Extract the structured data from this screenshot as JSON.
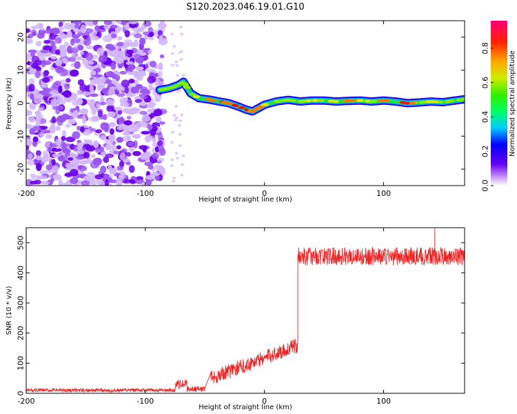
{
  "title": "S120.2023.046.19.01.G10",
  "colors": {
    "snr_line": "#ee2222",
    "ridge_strong": "#dd1111",
    "ridge_mid": "#22cc22",
    "ridge_weak": "#2200ee",
    "noise": "#7700ee"
  },
  "chart_data": [
    {
      "id": "spectrogram",
      "type": "heatmap",
      "xlabel": "Height of straight line (km)",
      "ylabel": "Frequency (Hz)",
      "xlim": [
        -200,
        168
      ],
      "ylim": [
        -25,
        25
      ],
      "x_ticks": [
        -200,
        -100,
        0,
        100
      ],
      "x_tick_labels": [
        "-200",
        "-100",
        "0",
        "100"
      ],
      "y_ticks": [
        -20,
        -10,
        0,
        10,
        20
      ],
      "y_tick_labels": [
        "-20",
        "-10",
        "0",
        "10",
        "20"
      ],
      "noise_region_x": [
        -200,
        -85
      ],
      "ridge": {
        "x": [
          -88,
          -80,
          -72,
          -68,
          -62,
          -55,
          -45,
          -38,
          -30,
          -22,
          -15,
          -10,
          -5,
          0,
          10,
          20,
          30,
          40,
          50,
          60,
          70,
          80,
          90,
          100,
          110,
          120,
          130,
          140,
          150,
          160,
          168
        ],
        "y": [
          4,
          4.5,
          5.5,
          6.5,
          3,
          1.5,
          1,
          0.5,
          0,
          -1,
          -2,
          -2.5,
          -1.5,
          -0.5,
          0.5,
          1,
          0.5,
          0.8,
          0.8,
          0.5,
          0.7,
          0.8,
          0.5,
          0.8,
          0.5,
          0,
          0.2,
          0.5,
          0.3,
          0.8,
          1.2
        ],
        "amplitude": [
          0.3,
          0.5,
          0.6,
          0.6,
          0.6,
          0.7,
          0.8,
          0.9,
          0.8,
          0.9,
          0.9,
          0.8,
          0.8,
          0.7,
          0.6,
          0.65,
          0.6,
          0.7,
          0.6,
          0.7,
          0.8,
          0.75,
          0.6,
          0.8,
          0.9,
          0.95,
          0.6,
          0.7,
          0.6,
          0.5,
          0.5
        ]
      },
      "colorbar": {
        "label": "Normalized spectral amplitude",
        "range": [
          0,
          0.96
        ],
        "ticks": [
          0.0,
          0.2,
          0.4,
          0.6,
          0.8
        ],
        "tick_labels": [
          "0.0",
          "0.2",
          "0.4",
          "0.6",
          "0.8"
        ]
      }
    },
    {
      "id": "snr",
      "type": "line",
      "xlabel": "Height of straight line (km)",
      "ylabel": "SNR (10 * v/v)",
      "xlim": [
        -200,
        168
      ],
      "ylim": [
        0,
        550
      ],
      "x_ticks": [
        -200,
        -100,
        0,
        100
      ],
      "x_tick_labels": [
        "-200",
        "-100",
        "0",
        "100"
      ],
      "y_ticks": [
        0,
        100,
        200,
        300,
        400,
        500
      ],
      "y_tick_labels": [
        "0",
        "100",
        "200",
        "300",
        "400",
        "500"
      ],
      "series": [
        {
          "name": "SNR",
          "segments": [
            {
              "x_start": -200,
              "x_end": -75,
              "mean": 10,
              "spread": 6
            },
            {
              "x_start": -75,
              "x_end": -65,
              "mean": 30,
              "spread": 15
            },
            {
              "x_start": -65,
              "x_end": -50,
              "mean": 15,
              "spread": 10
            },
            {
              "x_start": -45,
              "x_end": 28,
              "mean_start": 50,
              "mean_end": 160,
              "spread": 25
            },
            {
              "x_start": 28,
              "x_end": 168,
              "mean": 455,
              "spread": 30
            }
          ],
          "spikes": [
            {
              "x": 28,
              "value": 460
            },
            {
              "x": 143,
              "value": 548
            }
          ]
        }
      ]
    }
  ]
}
